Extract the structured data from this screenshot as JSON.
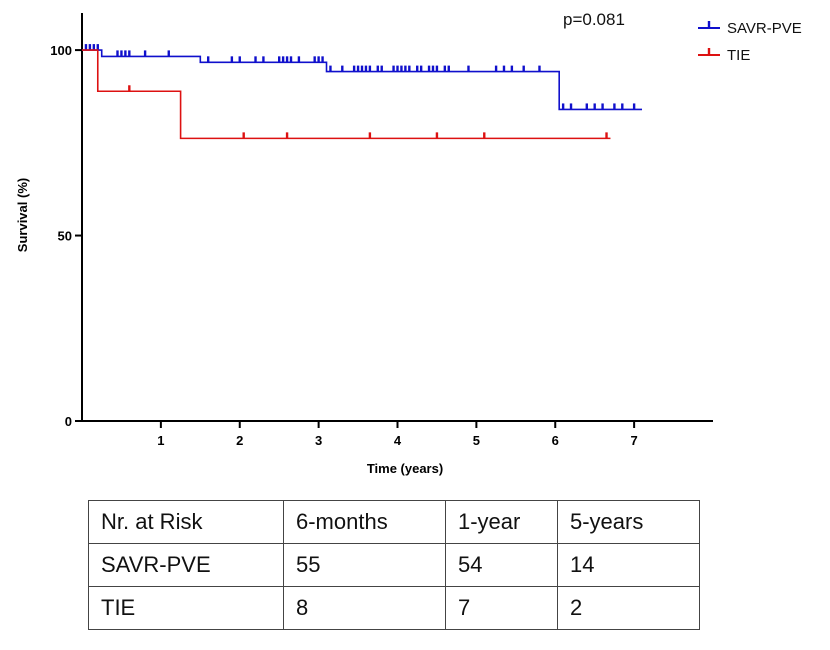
{
  "chart_data": {
    "type": "line",
    "subtype": "kaplan-meier",
    "title": "",
    "xlabel": "Time (years)",
    "ylabel": "Survival (%)",
    "xlim": [
      0,
      8
    ],
    "ylim": [
      0,
      110
    ],
    "xticks": [
      1,
      2,
      3,
      4,
      5,
      6,
      7
    ],
    "yticks": [
      0,
      50,
      100
    ],
    "annotation": "p=0.081",
    "grid": false,
    "legend_position": "top-right",
    "series": [
      {
        "name": "SAVR-PVE",
        "color": "#1010cc",
        "steps": [
          [
            0,
            100
          ],
          [
            0.25,
            98.3
          ],
          [
            1.5,
            96.7
          ],
          [
            3.1,
            94.2
          ],
          [
            6.05,
            84.0
          ],
          [
            7.1,
            84.0
          ]
        ],
        "censor_x": [
          0.05,
          0.1,
          0.15,
          0.2,
          0.45,
          0.5,
          0.55,
          0.6,
          0.8,
          1.1,
          1.6,
          1.9,
          2.0,
          2.2,
          2.3,
          2.5,
          2.55,
          2.6,
          2.65,
          2.75,
          2.95,
          3.0,
          3.05,
          3.15,
          3.3,
          3.45,
          3.5,
          3.55,
          3.6,
          3.65,
          3.75,
          3.8,
          3.95,
          4.0,
          4.05,
          4.1,
          4.15,
          4.25,
          4.3,
          4.4,
          4.45,
          4.5,
          4.6,
          4.65,
          4.9,
          5.25,
          5.35,
          5.45,
          5.6,
          5.8,
          6.1,
          6.2,
          6.4,
          6.5,
          6.6,
          6.75,
          6.85,
          7.0
        ]
      },
      {
        "name": "TIE",
        "color": "#dd1111",
        "steps": [
          [
            0,
            100
          ],
          [
            0.2,
            88.9
          ],
          [
            1.25,
            76.2
          ],
          [
            6.7,
            76.2
          ]
        ],
        "censor_x": [
          0.6,
          2.05,
          2.6,
          3.65,
          4.5,
          5.1,
          6.65
        ]
      }
    ]
  },
  "risk_table": {
    "headers": [
      "Nr. at Risk",
      "6-months",
      "1-year",
      "5-years"
    ],
    "rows": [
      [
        "SAVR-PVE",
        "55",
        "54",
        "14"
      ],
      [
        "TIE",
        "8",
        "7",
        "2"
      ]
    ]
  }
}
